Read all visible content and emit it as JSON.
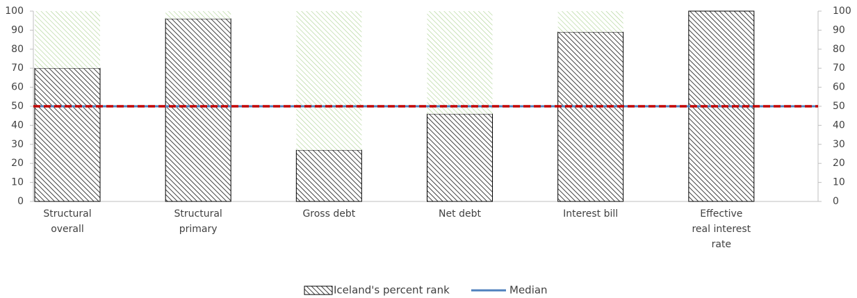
{
  "chart_data": {
    "type": "bar",
    "stacked": true,
    "categories": [
      "Structural overall",
      "Structural primary",
      "Gross debt",
      "Net debt",
      "Interest bill",
      "Effective real interest rate"
    ],
    "series": [
      {
        "name": "Iceland's percent rank",
        "color": "#404040",
        "values": [
          70,
          96,
          27,
          46,
          89,
          100
        ]
      },
      {
        "color": "#a9d18e",
        "values": [
          30,
          4,
          73,
          54,
          11,
          0
        ]
      }
    ],
    "lines": [
      {
        "name": "Median",
        "color": "#4f81bd",
        "values": [
          50,
          50,
          50,
          50,
          50,
          50
        ]
      },
      {
        "color": "#c00000",
        "style": "dashed",
        "values": [
          50,
          50,
          50,
          50,
          50,
          50
        ]
      }
    ],
    "ylim": [
      0,
      100
    ],
    "yticks": [
      0,
      10,
      20,
      30,
      40,
      50,
      60,
      70,
      80,
      90,
      100
    ],
    "y2lim": [
      0,
      100
    ],
    "y2ticks": [
      0,
      10,
      20,
      30,
      40,
      50,
      60,
      70,
      80,
      90,
      100
    ],
    "legend": "bottom"
  }
}
